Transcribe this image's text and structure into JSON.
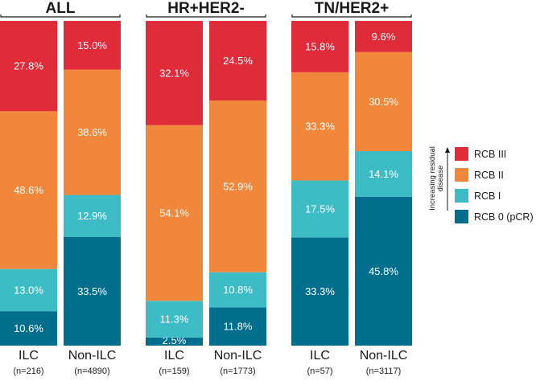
{
  "chart_data": {
    "type": "bar",
    "stacked": true,
    "normalized": true,
    "unit": "%",
    "groups": [
      {
        "title": "ALL",
        "bars": [
          {
            "category": "ILC",
            "n_label": "(n=216)",
            "values": [
              10.6,
              13.0,
              48.6,
              27.8
            ],
            "labels": [
              "10.6%",
              "13.0%",
              "48.6%",
              "27.8%"
            ]
          },
          {
            "category": "Non-ILC",
            "n_label": "(n=4890)",
            "values": [
              33.5,
              12.9,
              38.6,
              15.0
            ],
            "labels": [
              "33.5%",
              "12.9%",
              "38.6%",
              "15.0%"
            ]
          }
        ]
      },
      {
        "title": "HR+HER2-",
        "bars": [
          {
            "category": "ILC",
            "n_label": "(n=159)",
            "values": [
              2.5,
              11.3,
              54.1,
              32.1
            ],
            "labels": [
              "2.5%",
              "11.3%",
              "54.1%",
              "32.1%"
            ]
          },
          {
            "category": "Non-ILC",
            "n_label": "(n=1773)",
            "values": [
              11.8,
              10.8,
              52.9,
              24.5
            ],
            "labels": [
              "11.8%",
              "10.8%",
              "52.9%",
              "24.5%"
            ]
          }
        ]
      },
      {
        "title": "TN/HER2+",
        "bars": [
          {
            "category": "ILC",
            "n_label": "(n=57)",
            "values": [
              33.3,
              17.5,
              33.3,
              15.8
            ],
            "labels": [
              "33.3%",
              "17.5%",
              "33.3%",
              "15.8%"
            ]
          },
          {
            "category": "Non-ILC",
            "n_label": "(n=3117)",
            "values": [
              45.8,
              14.1,
              30.5,
              9.6
            ],
            "labels": [
              "45.8%",
              "14.1%",
              "30.5%",
              "9.6%"
            ]
          }
        ]
      }
    ],
    "series": [
      {
        "name": "RCB 0 (pCR)",
        "color": "#006e8c"
      },
      {
        "name": "RCB I",
        "color": "#3dbcc6"
      },
      {
        "name": "RCB II",
        "color": "#f0873a"
      },
      {
        "name": "RCB III",
        "color": "#e02b3a"
      }
    ],
    "legend": {
      "order": [
        "RCB III",
        "RCB II",
        "RCB I",
        "RCB 0 (pCR)"
      ],
      "axis_note": [
        "Increasing residual",
        "disease"
      ],
      "placement": "right"
    }
  }
}
